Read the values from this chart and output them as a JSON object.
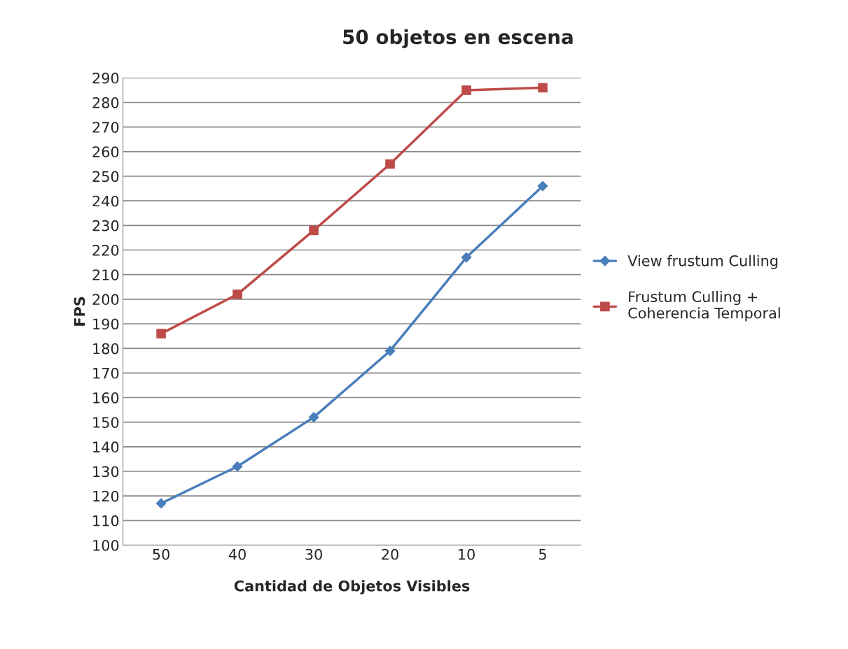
{
  "chart_data": {
    "type": "line",
    "title": "50 objetos en escena",
    "xlabel": "Cantidad de Objetos Visibles",
    "ylabel": "FPS",
    "categories": [
      "50",
      "40",
      "30",
      "20",
      "10",
      "5"
    ],
    "series": [
      {
        "name": "View frustum Culling",
        "color": "#4a7ebb",
        "marker": "diamond",
        "values": [
          117,
          132,
          152,
          179,
          217,
          246
        ]
      },
      {
        "name": "Frustum Culling +\nCoherencia Temporal",
        "color": "#be4b48",
        "marker": "square",
        "values": [
          186,
          202,
          228,
          255,
          285,
          286
        ]
      }
    ],
    "ylim": [
      100,
      290
    ],
    "yticks": [
      100,
      110,
      120,
      130,
      140,
      150,
      160,
      170,
      180,
      190,
      200,
      210,
      220,
      230,
      240,
      250,
      260,
      270,
      280,
      290
    ],
    "grid": "y",
    "legend": "right"
  }
}
